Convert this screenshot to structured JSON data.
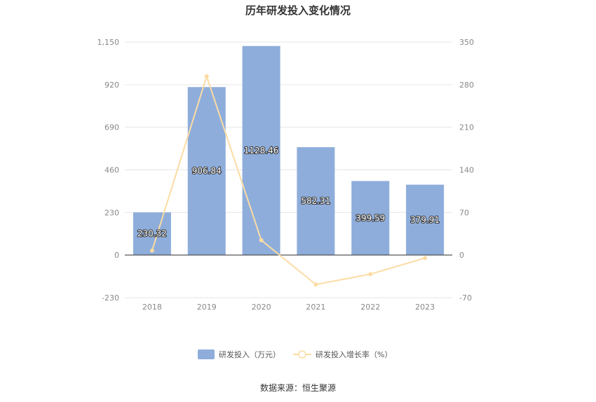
{
  "title": "历年研发投入变化情况",
  "source": "数据来源：恒生聚源",
  "colors": {
    "bar": "#8eaddb",
    "line": "#fbdca4",
    "axis": "#333333",
    "grid": "#e6e6e6"
  },
  "chart_data": {
    "type": "bar",
    "categories": [
      "2018",
      "2019",
      "2020",
      "2021",
      "2022",
      "2023"
    ],
    "series": [
      {
        "name": "研发投入（万元）",
        "type": "bar",
        "axis": "left",
        "values": [
          230.32,
          906.84,
          1128.46,
          582.31,
          399.59,
          379.91
        ]
      },
      {
        "name": "研发投入增长率（%）",
        "type": "line",
        "axis": "right",
        "values": [
          7.3,
          293.7,
          24.4,
          -48.4,
          -31.4,
          -4.9
        ]
      }
    ],
    "y_left": {
      "ticks": [
        "1,150",
        "920",
        "690",
        "460",
        "230",
        "0",
        "-230"
      ],
      "ylim": [
        -230,
        1150
      ]
    },
    "y_right": {
      "ticks": [
        "350",
        "280",
        "210",
        "140",
        "70",
        "0",
        "-70"
      ],
      "ylim": [
        -70,
        350
      ]
    },
    "bar_labels": [
      "230.32",
      "906.84",
      "1128.46",
      "582.31",
      "399.59",
      "379.91"
    ],
    "grid": true,
    "legend_position": "bottom"
  }
}
